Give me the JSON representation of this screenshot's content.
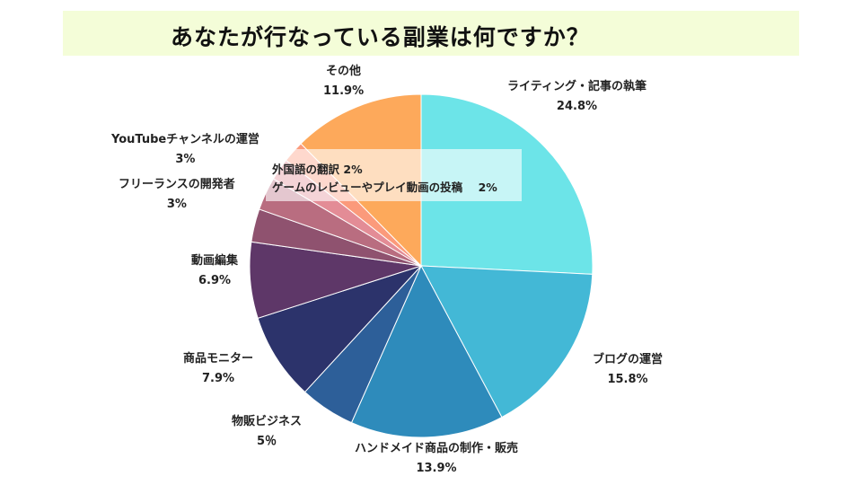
{
  "title": "あなたが行なっている副業は何ですか？",
  "chart_data": {
    "type": "pie",
    "title": "あなたが行なっている副業は何ですか？",
    "start_angle": "12 o'clock",
    "direction": "clockwise",
    "slices": [
      {
        "label": "ライティング・記事の執筆",
        "value": 24.8,
        "value_label": "24.8%",
        "color": "#6ce4e8"
      },
      {
        "label": "ブログの運営",
        "value": 15.8,
        "value_label": "15.8%",
        "color": "#43b8d6"
      },
      {
        "label": "ハンドメイド商品の制作・販売",
        "value": 13.9,
        "value_label": "13.9%",
        "color": "#2e8bbb"
      },
      {
        "label": "物販ビジネス",
        "value": 5,
        "value_label": "5％",
        "color": "#2d5f99"
      },
      {
        "label": "商品モニター",
        "value": 7.9,
        "value_label": "7.9%",
        "color": "#2c336b"
      },
      {
        "label": "動画編集",
        "value": 6.9,
        "value_label": "6.9%",
        "color": "#5e3768"
      },
      {
        "label": "フリーランスの開発者",
        "value": 3,
        "value_label": "3%",
        "color": "#8f526f"
      },
      {
        "label": "YouTubeチャンネルの運営",
        "value": 3,
        "value_label": "3%",
        "color": "#b96d80"
      },
      {
        "label": "ゲームのレビューやプレイ動画の投稿",
        "value": 2,
        "value_label": "2%",
        "color": "#e38c96"
      },
      {
        "label": "外国語の翻訳",
        "value": 2,
        "value_label": "2%",
        "color": "#fb9a7b"
      },
      {
        "label": "その他",
        "value": 11.9,
        "value_label": "11.9%",
        "color": "#fda95b"
      }
    ]
  }
}
